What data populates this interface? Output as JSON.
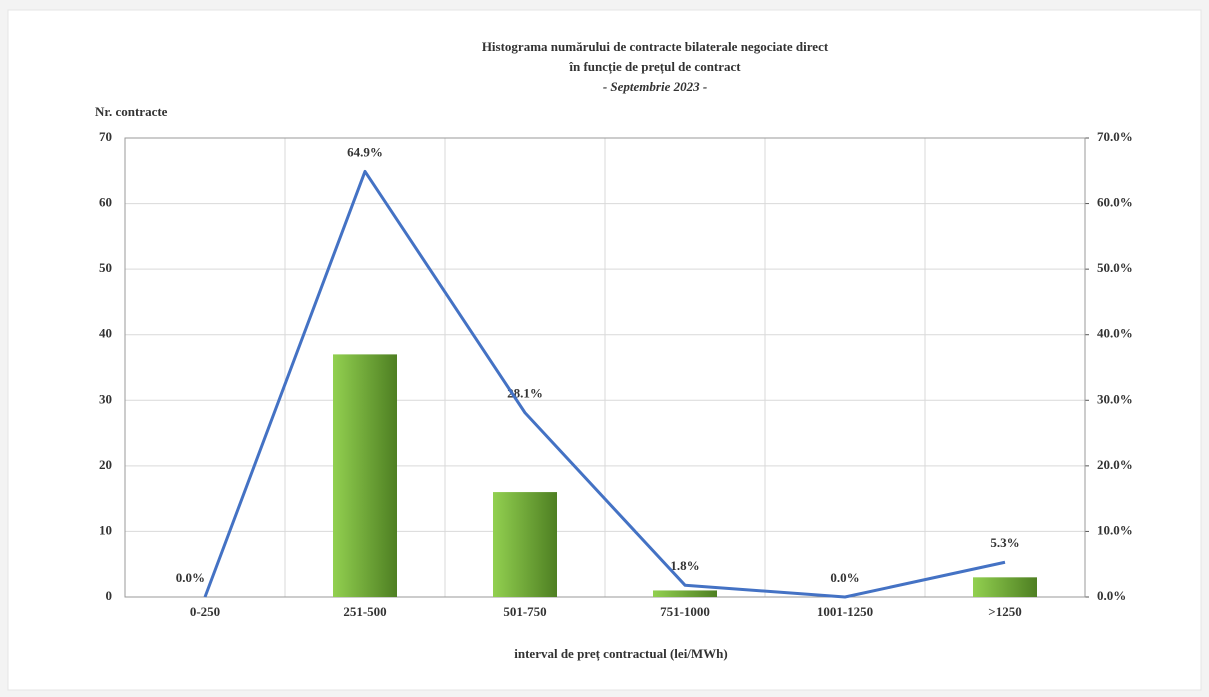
{
  "chart_data": {
    "type": "bar",
    "title": [
      "Histograma numărului de contracte bilaterale negociate direct",
      "în funcție de prețul de contract",
      "-  Septembrie 2023   -"
    ],
    "y_label": "Nr. contracte",
    "x_label": "interval de preț contractual (lei/MWh)",
    "categories": [
      "0-250",
      "251-500",
      "501-750",
      "751-1000",
      "1001-1250",
      ">1250"
    ],
    "series": [
      {
        "name": "Nr. contracte",
        "type": "bar",
        "color": "#6aa632",
        "values": [
          0,
          37,
          16,
          1,
          0,
          3
        ]
      },
      {
        "name": "Procent",
        "type": "line",
        "axis": "y2",
        "color": "#4472c4",
        "values": [
          0,
          64.9,
          28.1,
          1.8,
          0,
          5.3
        ],
        "value_labels": [
          "0.0%",
          "64.9%",
          "28.1%",
          "1.8%",
          "0.0%",
          "5.3%"
        ]
      }
    ],
    "ylim": [
      0,
      70
    ],
    "yticks": [
      0,
      10,
      20,
      30,
      40,
      50,
      60,
      70
    ],
    "y2lim": [
      0,
      70
    ],
    "y2ticks": [
      {
        "value": 0,
        "label": "0.0%"
      },
      {
        "value": 10,
        "label": "10.0%"
      },
      {
        "value": 20,
        "label": "20.0%"
      },
      {
        "value": 30,
        "label": "30.0%"
      },
      {
        "value": 40,
        "label": "40.0%"
      },
      {
        "value": 50,
        "label": "50.0%"
      },
      {
        "value": 60,
        "label": "60.0%"
      },
      {
        "value": 70,
        "label": "70.0%"
      }
    ],
    "grid": true
  }
}
